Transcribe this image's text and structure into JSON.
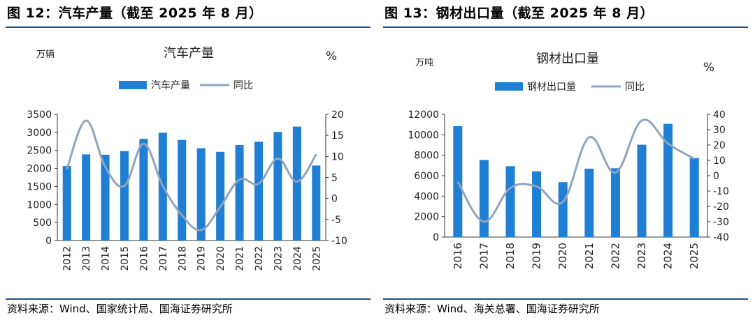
{
  "colors": {
    "bar": "#1f7fd4",
    "line": "#8fa4bd",
    "rule": "#1e4f91",
    "axis": "#333333"
  },
  "charts": [
    {
      "figure_title": "图 12：汽车产量（截至 2025 年 8 月）",
      "source": "资料来源：Wind、国家统计局、国海证券研究所"
    },
    {
      "figure_title": "图 13：钢材出口量（截至 2025 年 8 月）",
      "source": "资料来源：Wind、海关总署、国海证券研究所"
    }
  ],
  "chart_data": [
    {
      "type": "bar",
      "title": "汽车产量",
      "ylabel": "万辆",
      "y2label": "%",
      "categories": [
        "2012",
        "2013",
        "2014",
        "2015",
        "2016",
        "2017",
        "2018",
        "2019",
        "2020",
        "2021",
        "2022",
        "2023",
        "2024",
        "2025"
      ],
      "ylim": [
        0,
        3500
      ],
      "yticks": [
        0,
        500,
        1000,
        1500,
        2000,
        2500,
        3000,
        3500
      ],
      "y2lim": [
        -10,
        20
      ],
      "y2ticks": [
        -10,
        -5,
        0,
        5,
        10,
        15,
        20
      ],
      "series": [
        {
          "name": "汽车产量",
          "type": "bar",
          "axis": "left",
          "values": [
            2070,
            2390,
            2380,
            2480,
            2820,
            2990,
            2790,
            2560,
            2460,
            2650,
            2740,
            3010,
            3160,
            2080
          ]
        },
        {
          "name": "同比",
          "type": "line",
          "axis": "right",
          "values": [
            7,
            18.5,
            7.5,
            3,
            13,
            3,
            -4,
            -7.5,
            -2,
            4.5,
            3.5,
            9.5,
            4,
            10.5
          ]
        }
      ],
      "legend": "top-center"
    },
    {
      "type": "bar",
      "title": "钢材出口量",
      "ylabel": "万吨",
      "y2label": "%",
      "categories": [
        "2016",
        "2017",
        "2018",
        "2019",
        "2020",
        "2021",
        "2022",
        "2023",
        "2024",
        "2025"
      ],
      "ylim": [
        0,
        12000
      ],
      "yticks": [
        0,
        2000,
        4000,
        6000,
        8000,
        10000,
        12000
      ],
      "y2lim": [
        -40,
        40
      ],
      "y2ticks": [
        -40,
        -30,
        -20,
        -10,
        0,
        10,
        20,
        30,
        40
      ],
      "series": [
        {
          "name": "钢材出口量",
          "type": "bar",
          "axis": "left",
          "values": [
            10850,
            7540,
            6930,
            6430,
            5370,
            6690,
            6730,
            9030,
            11070,
            7720
          ]
        },
        {
          "name": "同比",
          "type": "line",
          "axis": "right",
          "values": [
            -4,
            -30,
            -8,
            -7,
            -17,
            25,
            2,
            36,
            21,
            11
          ]
        }
      ],
      "legend": "top-center"
    }
  ]
}
